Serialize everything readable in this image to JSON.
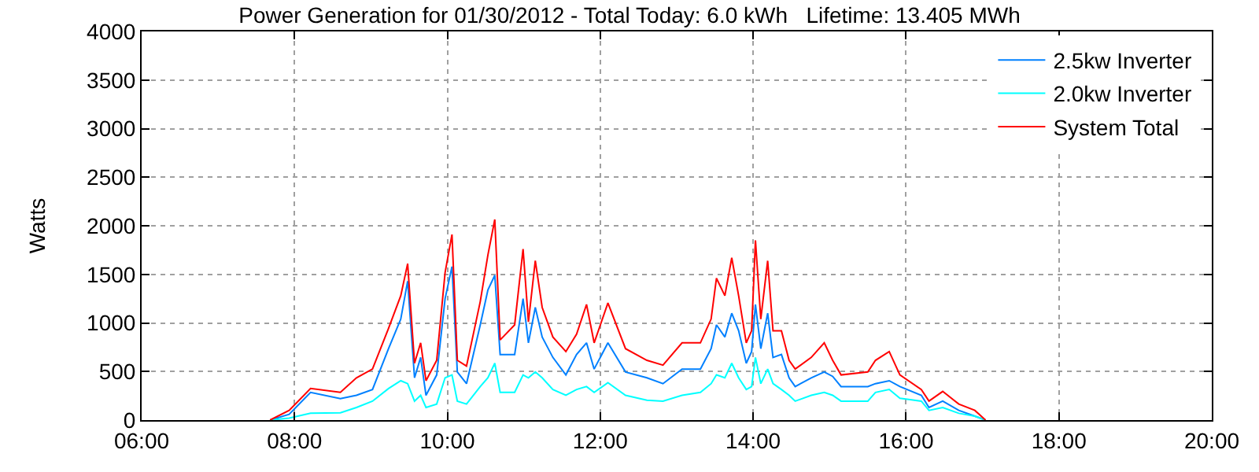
{
  "chart_data": {
    "type": "line",
    "title": "Power Generation for 01/30/2012 - Total Today: 6.0 kWh   Lifetime: 13.405 MWh",
    "ylabel": "Watts",
    "x": [
      7.68,
      7.93,
      8.21,
      8.6,
      8.81,
      9.02,
      9.23,
      9.39,
      9.48,
      9.57,
      9.65,
      9.72,
      9.86,
      9.97,
      10.06,
      10.13,
      10.25,
      10.43,
      10.53,
      10.62,
      10.69,
      10.88,
      10.99,
      11.06,
      11.15,
      11.24,
      11.38,
      11.55,
      11.69,
      11.82,
      11.92,
      12.1,
      12.33,
      12.61,
      12.82,
      13.07,
      13.31,
      13.45,
      13.52,
      13.63,
      13.72,
      13.81,
      13.91,
      13.98,
      14.03,
      14.1,
      14.19,
      14.26,
      14.37,
      14.47,
      14.55,
      14.76,
      14.93,
      15.04,
      15.15,
      15.5,
      15.6,
      15.78,
      15.92,
      16.2,
      16.3,
      16.48,
      16.69,
      16.9,
      17.04
    ],
    "series": [
      {
        "name": "2.5kw Inverter",
        "color": "#0080ff",
        "values": [
          0,
          60,
          285,
          220,
          255,
          315,
          735,
          1040,
          1430,
          435,
          645,
          255,
          465,
          1250,
          1580,
          495,
          375,
          980,
          1340,
          1490,
          675,
          675,
          1250,
          795,
          1160,
          855,
          645,
          465,
          675,
          795,
          525,
          795,
          495,
          435,
          375,
          525,
          525,
          735,
          980,
          855,
          1100,
          920,
          585,
          705,
          1190,
          735,
          1100,
          645,
          675,
          435,
          345,
          435,
          495,
          450,
          345,
          345,
          375,
          405,
          345,
          255,
          130,
          195,
          100,
          40,
          0
        ]
      },
      {
        "name": "2.0kw Inverter",
        "color": "#00ffff",
        "values": [
          0,
          20,
          70,
          75,
          130,
          195,
          325,
          405,
          375,
          195,
          255,
          130,
          165,
          435,
          465,
          195,
          165,
          345,
          435,
          585,
          285,
          285,
          465,
          435,
          495,
          435,
          315,
          255,
          315,
          345,
          285,
          385,
          255,
          205,
          195,
          255,
          285,
          375,
          465,
          435,
          585,
          435,
          315,
          345,
          645,
          375,
          525,
          375,
          315,
          255,
          195,
          255,
          285,
          255,
          195,
          195,
          285,
          315,
          225,
          195,
          100,
          130,
          70,
          40,
          0
        ]
      },
      {
        "name": "System Total",
        "color": "#ff0000",
        "values": [
          0,
          100,
          325,
          285,
          435,
          525,
          945,
          1280,
          1610,
          585,
          795,
          405,
          615,
          1520,
          1910,
          615,
          555,
          1220,
          1700,
          2065,
          825,
          980,
          1760,
          1010,
          1640,
          1160,
          855,
          705,
          885,
          1190,
          795,
          1205,
          735,
          615,
          565,
          795,
          795,
          1040,
          1460,
          1280,
          1670,
          1280,
          795,
          920,
          1850,
          1040,
          1640,
          920,
          920,
          615,
          525,
          645,
          795,
          615,
          465,
          495,
          615,
          705,
          465,
          315,
          195,
          295,
          165,
          100,
          0
        ]
      }
    ],
    "xlim": [
      6,
      20
    ],
    "xticks": [
      {
        "value": 6,
        "label": "06:00"
      },
      {
        "value": 8,
        "label": "08:00"
      },
      {
        "value": 10,
        "label": "10:00"
      },
      {
        "value": 12,
        "label": "12:00"
      },
      {
        "value": 14,
        "label": "14:00"
      },
      {
        "value": 16,
        "label": "16:00"
      },
      {
        "value": 18,
        "label": "18:00"
      },
      {
        "value": 20,
        "label": "20:00"
      }
    ],
    "ylim": [
      0,
      4000
    ],
    "yticks": [
      0,
      500,
      1000,
      1500,
      2000,
      2500,
      3000,
      3500,
      4000
    ],
    "grid": true,
    "legend": "top right",
    "marker": "none",
    "line_style": "solid"
  }
}
